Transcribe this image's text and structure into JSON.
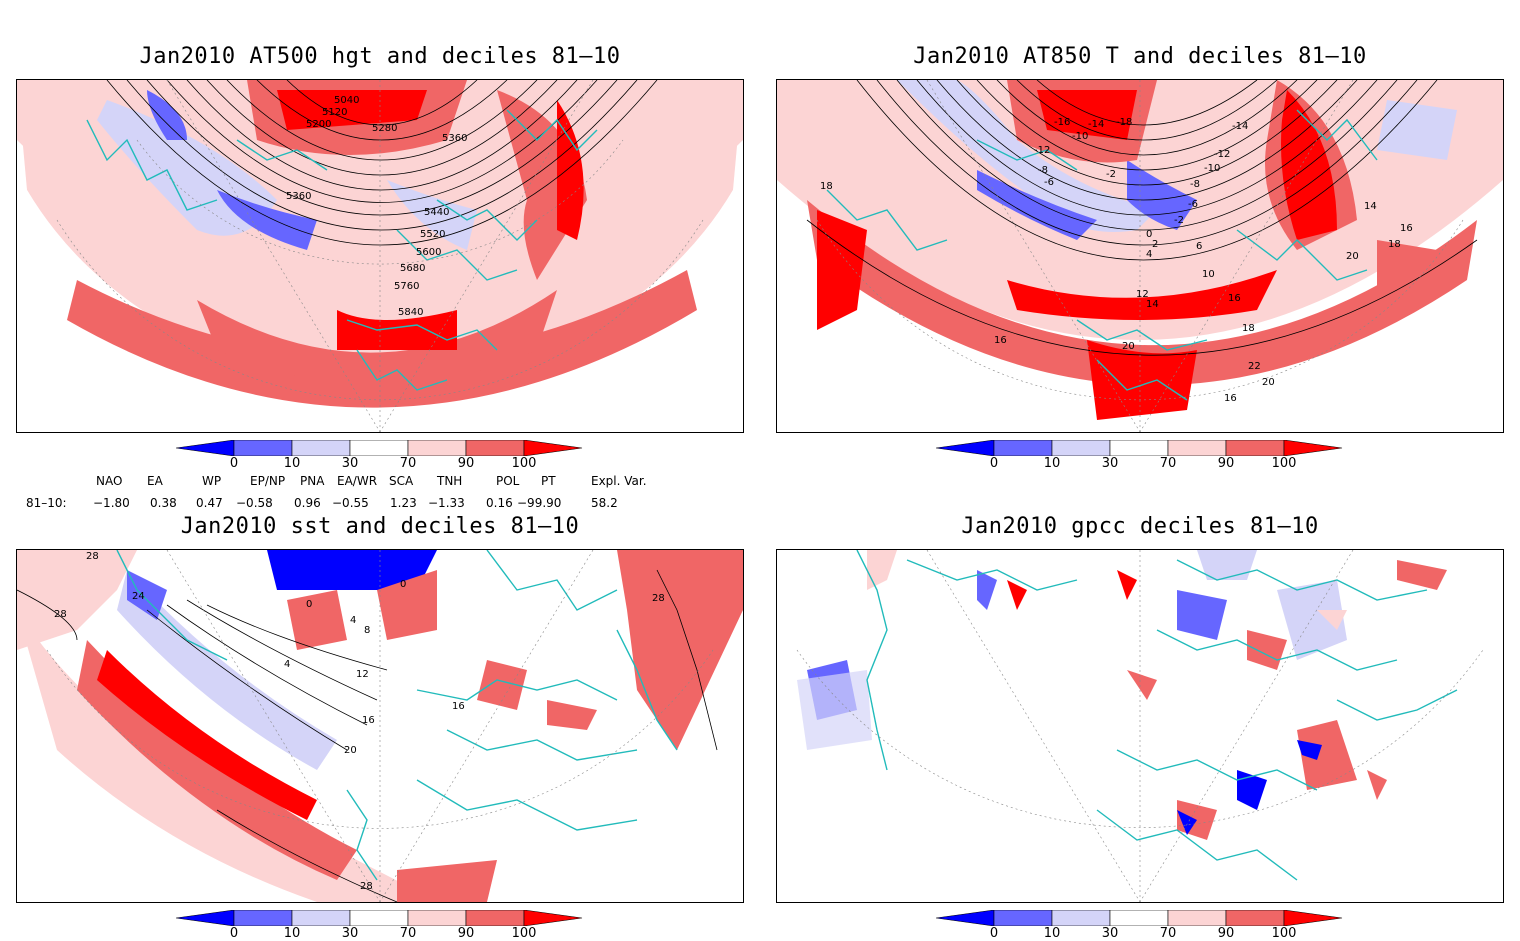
{
  "panels": [
    {
      "title": "Jan2010 AT500 hgt and deciles 81–10",
      "contour_labels": [
        "5040",
        "5120",
        "5200",
        "5280",
        "5360",
        "5360",
        "5440",
        "5520",
        "5600",
        "5680",
        "5760",
        "5840"
      ]
    },
    {
      "title": "Jan2010 AT850 T and deciles 81–10",
      "contour_labels": [
        "-16",
        "-14",
        "-18",
        "-10",
        "-12",
        "-8",
        "-6",
        "-2",
        "-12",
        "-14",
        "-10",
        "-8",
        "-6",
        "-2",
        "0",
        "2",
        "4",
        "6",
        "10",
        "12",
        "14",
        "16",
        "16",
        "18",
        "20",
        "18",
        "20",
        "22",
        "16",
        "18",
        "14",
        "16",
        "20"
      ]
    },
    {
      "title": "Jan2010 sst and deciles 81–10",
      "contour_labels": [
        "28",
        "24",
        "28",
        "0",
        "4",
        "0",
        "8",
        "12",
        "16",
        "16",
        "20",
        "28",
        "4",
        "28"
      ]
    },
    {
      "title": "Jan2010 gpcc deciles 81–10",
      "contour_labels": []
    }
  ],
  "colorbar": {
    "ticks": [
      "0",
      "10",
      "30",
      "70",
      "90",
      "100"
    ],
    "colors": [
      "#0000ff",
      "#6666ff",
      "#d4d4f8",
      "#ffffff",
      "#fcd4d4",
      "#f06666",
      "#ff0000"
    ]
  },
  "indices": {
    "headers": [
      "NAO",
      "EA",
      "WP",
      "EP/NP",
      "PNA",
      "EA/WR",
      "SCA",
      "TNH",
      "POL",
      "PT",
      "Expl. Var."
    ],
    "row_label": "81–10:",
    "values": [
      "−1.80",
      "0.38",
      "0.47",
      "−0.58",
      "0.96",
      "−0.55",
      "1.23",
      "−1.33",
      "0.16",
      "−99.90",
      "58.2"
    ]
  },
  "colors": {
    "coast": "#22bbbb",
    "frame": "#000000"
  }
}
